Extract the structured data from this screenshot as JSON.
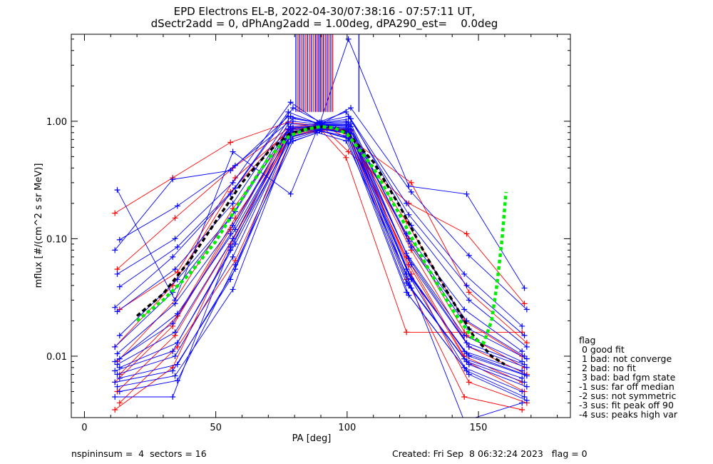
{
  "title_line1": "EPD Electrons EL-B, 2022-04-30/07:38:16 - 07:57:11 UT,",
  "title_line2": "dSectr2add = 0, dPhAng2add = 1.00deg, dPA290_est=    0.0deg",
  "footer_left": "nspininsum =  4  sectors = 16",
  "footer_right": "Created: Fri Sep  8 06:32:24 2023   flag = 0",
  "flag_legend": {
    "title": "flag",
    "items": [
      " 0 good fit",
      " 1 bad: not converge",
      " 2 bad: no fit",
      " 3 bad: bad fgm state",
      "-1 sus: far off median",
      "-2 sus: not symmetric",
      "-3 sus: fit peak off 90",
      "-4 sus: peaks high var"
    ]
  },
  "colors": {
    "red": "#ff0000",
    "blue": "#0000ff",
    "green": "#00ee00",
    "black": "#000000"
  },
  "chart_data": {
    "type": "line",
    "xlabel": "PA [deg]",
    "ylabel": "mflux [#/(cm^2 s sr MeV)]",
    "xlim": [
      -5,
      185
    ],
    "ylim": [
      0.003,
      5.5
    ],
    "yscale": "log",
    "xticks": [
      0,
      50,
      100,
      150
    ],
    "xtick_labels": [
      "0",
      "50",
      "100",
      "150"
    ],
    "yticks": [
      0.01,
      0.1,
      1.0
    ],
    "ytick_labels": [
      "0.01",
      "0.10",
      "1.00"
    ],
    "grid": false,
    "pa_bins": [
      12.5,
      34.5,
      56.5,
      78.5,
      89.5,
      100.5,
      123.5,
      145.5,
      167.5
    ],
    "series": [
      {
        "color": "red",
        "values": [
          0.165,
          0.33,
          0.66,
          0.98,
          0.92,
          0.49,
          0.016,
          0.016,
          0.016
        ]
      },
      {
        "color": "red",
        "values": [
          0.055,
          0.15,
          0.4,
          0.9,
          0.95,
          0.55,
          0.2,
          0.11,
          0.028
        ]
      },
      {
        "color": "red",
        "values": [
          0.025,
          0.052,
          0.33,
          0.88,
          0.92,
          0.7,
          0.3,
          0.035,
          0.013
        ]
      },
      {
        "color": "red",
        "values": [
          0.012,
          0.04,
          0.25,
          0.85,
          0.9,
          0.78,
          0.14,
          0.02,
          0.01
        ]
      },
      {
        "color": "red",
        "values": [
          0.009,
          0.03,
          0.18,
          0.82,
          0.88,
          0.8,
          0.1,
          0.015,
          0.008
        ]
      },
      {
        "color": "red",
        "values": [
          0.007,
          0.022,
          0.15,
          0.8,
          0.87,
          0.82,
          0.08,
          0.012,
          0.007
        ]
      },
      {
        "color": "red",
        "values": [
          0.006,
          0.018,
          0.12,
          0.78,
          0.86,
          0.83,
          0.07,
          0.01,
          0.006
        ]
      },
      {
        "color": "red",
        "values": [
          0.005,
          0.015,
          0.1,
          0.76,
          0.85,
          0.84,
          0.06,
          0.009,
          0.005
        ]
      },
      {
        "color": "red",
        "values": [
          0.004,
          0.012,
          0.065,
          0.75,
          0.84,
          0.85,
          0.05,
          0.006,
          0.004
        ]
      },
      {
        "color": "red",
        "values": [
          0.0035,
          0.008,
          0.09,
          0.72,
          0.83,
          0.86,
          0.045,
          0.0045,
          0.0035
        ]
      },
      {
        "color": "blue",
        "values": [
          0.26,
          0.03,
          0.55,
          0.24,
          0.95,
          5.0,
          0.28,
          0.24,
          0.038
        ]
      },
      {
        "color": "blue",
        "values": [
          0.098,
          0.19,
          0.42,
          1.05,
          0.96,
          1.3,
          0.25,
          0.072,
          0.025
        ]
      },
      {
        "color": "blue",
        "values": [
          0.08,
          0.32,
          0.38,
          1.1,
          0.97,
          1.2,
          0.2,
          0.05,
          0.018
        ]
      },
      {
        "color": "blue",
        "values": [
          0.05,
          0.1,
          0.3,
          1.45,
          0.98,
          1.1,
          0.16,
          0.04,
          0.015
        ]
      },
      {
        "color": "blue",
        "values": [
          0.039,
          0.085,
          0.27,
          1.3,
          0.97,
          1.05,
          0.13,
          0.03,
          0.012
        ]
      },
      {
        "color": "blue",
        "values": [
          0.026,
          0.07,
          0.24,
          1.2,
          0.96,
          1.0,
          0.11,
          0.025,
          0.011
        ]
      },
      {
        "color": "blue",
        "values": [
          0.024,
          0.055,
          0.2,
          1.1,
          0.95,
          0.98,
          0.095,
          0.02,
          0.01
        ]
      },
      {
        "color": "blue",
        "values": [
          0.015,
          0.045,
          0.17,
          1.0,
          0.94,
          0.95,
          0.085,
          0.017,
          0.0095
        ]
      },
      {
        "color": "blue",
        "values": [
          0.012,
          0.035,
          0.15,
          0.95,
          0.93,
          0.93,
          0.075,
          0.015,
          0.009
        ]
      },
      {
        "color": "blue",
        "values": [
          0.0105,
          0.028,
          0.13,
          0.9,
          0.92,
          0.92,
          0.068,
          0.013,
          0.0085
        ]
      },
      {
        "color": "blue",
        "values": [
          0.0095,
          0.023,
          0.12,
          0.88,
          0.91,
          0.9,
          0.06,
          0.012,
          0.008
        ]
      },
      {
        "color": "blue",
        "values": [
          0.009,
          0.019,
          0.11,
          0.86,
          0.9,
          0.88,
          0.055,
          0.011,
          0.0075
        ]
      },
      {
        "color": "blue",
        "values": [
          0.0085,
          0.016,
          0.1,
          0.84,
          0.89,
          0.86,
          0.05,
          0.0105,
          0.007
        ]
      },
      {
        "color": "blue",
        "values": [
          0.008,
          0.013,
          0.09,
          0.82,
          0.88,
          0.84,
          0.046,
          0.01,
          0.0068
        ]
      },
      {
        "color": "blue",
        "values": [
          0.0075,
          0.011,
          0.08,
          0.8,
          0.87,
          0.82,
          0.042,
          0.0095,
          0.0065
        ]
      },
      {
        "color": "blue",
        "values": [
          0.007,
          0.01,
          0.07,
          0.78,
          0.86,
          0.8,
          0.04,
          0.009,
          0.006
        ]
      },
      {
        "color": "blue",
        "values": [
          0.0065,
          0.0085,
          0.055,
          0.75,
          0.85,
          0.78,
          0.038,
          0.0085,
          0.0055
        ]
      },
      {
        "color": "blue",
        "values": [
          0.006,
          0.0075,
          0.045,
          0.72,
          0.84,
          0.75,
          0.035,
          0.008,
          0.005
        ]
      },
      {
        "color": "blue",
        "values": [
          0.0055,
          0.0068,
          0.037,
          0.7,
          0.83,
          0.72,
          0.033,
          0.0075,
          0.0045
        ]
      },
      {
        "color": "blue",
        "values": [
          0.005,
          0.0062,
          0.06,
          0.68,
          0.82,
          0.7,
          0.045,
          0.007,
          0.0042
        ]
      },
      {
        "color": "blue",
        "values": [
          0.0045,
          0.0045,
          0.085,
          0.65,
          0.8,
          0.68,
          0.05,
          0.0028,
          0.004
        ]
      }
    ],
    "spikes": [
      {
        "x": 80.5,
        "color": "blue"
      },
      {
        "x": 81.3,
        "color": "red"
      },
      {
        "x": 82.0,
        "color": "blue"
      },
      {
        "x": 82.8,
        "color": "red"
      },
      {
        "x": 83.5,
        "color": "blue"
      },
      {
        "x": 84.3,
        "color": "red"
      },
      {
        "x": 85.0,
        "color": "blue"
      },
      {
        "x": 85.8,
        "color": "red"
      },
      {
        "x": 86.5,
        "color": "blue"
      },
      {
        "x": 87.3,
        "color": "red"
      },
      {
        "x": 88.0,
        "color": "blue"
      },
      {
        "x": 88.6,
        "color": "red"
      },
      {
        "x": 89.2,
        "color": "blue"
      },
      {
        "x": 89.8,
        "color": "blue"
      },
      {
        "x": 90.4,
        "color": "red"
      },
      {
        "x": 91.0,
        "color": "blue"
      },
      {
        "x": 91.7,
        "color": "red"
      },
      {
        "x": 92.4,
        "color": "blue"
      },
      {
        "x": 93.1,
        "color": "red"
      },
      {
        "x": 93.8,
        "color": "blue"
      },
      {
        "x": 94.5,
        "color": "red"
      },
      {
        "x": 104.5,
        "color": "blue"
      }
    ],
    "fit_black": {
      "x": [
        20,
        30,
        40,
        50,
        60,
        70,
        78,
        85,
        90,
        95,
        100,
        110,
        120,
        130,
        140,
        148,
        155,
        160
      ],
      "values": [
        0.022,
        0.034,
        0.065,
        0.14,
        0.3,
        0.55,
        0.78,
        0.87,
        0.9,
        0.89,
        0.8,
        0.45,
        0.19,
        0.072,
        0.03,
        0.015,
        0.01,
        0.0085
      ]
    },
    "fit_green": {
      "x": [
        20,
        30,
        40,
        50,
        60,
        70,
        78,
        85,
        90,
        95,
        100,
        110,
        120,
        130,
        140,
        148,
        152,
        155,
        157,
        159,
        160.5
      ],
      "values": [
        0.02,
        0.03,
        0.05,
        0.095,
        0.22,
        0.48,
        0.75,
        0.86,
        0.9,
        0.88,
        0.78,
        0.4,
        0.16,
        0.06,
        0.025,
        0.014,
        0.013,
        0.02,
        0.04,
        0.1,
        0.25
      ]
    }
  }
}
